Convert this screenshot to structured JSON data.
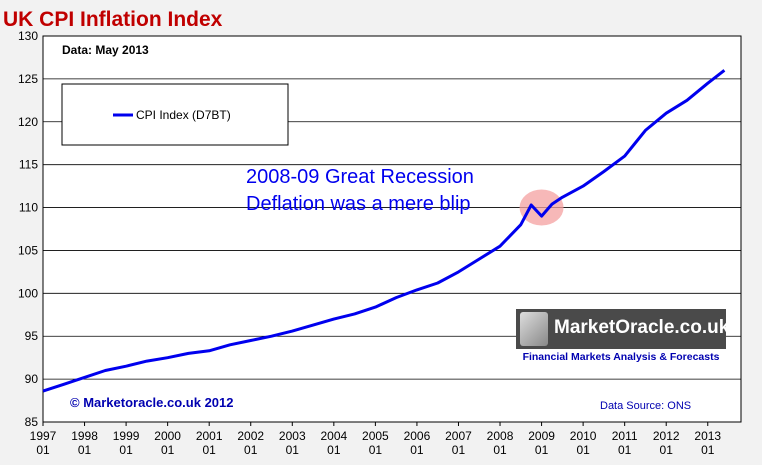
{
  "chart_data": {
    "type": "line",
    "title": "UK CPI Inflation Index",
    "subtitle": "Data: May 2013",
    "series": [
      {
        "name": "CPI Index (D7BT)",
        "color": "#0000ee",
        "points": [
          [
            1997.0,
            88.6
          ],
          [
            1997.5,
            89.4
          ],
          [
            1998.0,
            90.2
          ],
          [
            1998.5,
            91.0
          ],
          [
            1999.0,
            91.5
          ],
          [
            1999.5,
            92.1
          ],
          [
            2000.0,
            92.5
          ],
          [
            2000.5,
            93.0
          ],
          [
            2001.0,
            93.3
          ],
          [
            2001.5,
            94.0
          ],
          [
            2002.0,
            94.5
          ],
          [
            2002.5,
            95.0
          ],
          [
            2003.0,
            95.6
          ],
          [
            2003.5,
            96.3
          ],
          [
            2004.0,
            97.0
          ],
          [
            2004.5,
            97.6
          ],
          [
            2005.0,
            98.4
          ],
          [
            2005.5,
            99.5
          ],
          [
            2006.0,
            100.4
          ],
          [
            2006.5,
            101.2
          ],
          [
            2007.0,
            102.5
          ],
          [
            2007.5,
            104.0
          ],
          [
            2008.0,
            105.5
          ],
          [
            2008.5,
            108.0
          ],
          [
            2008.75,
            110.3
          ],
          [
            2009.0,
            109.0
          ],
          [
            2009.25,
            110.4
          ],
          [
            2009.5,
            111.2
          ],
          [
            2010.0,
            112.5
          ],
          [
            2010.5,
            114.2
          ],
          [
            2011.0,
            116.0
          ],
          [
            2011.5,
            119.0
          ],
          [
            2012.0,
            121.0
          ],
          [
            2012.5,
            122.5
          ],
          [
            2013.0,
            124.5
          ],
          [
            2013.4,
            126.0
          ]
        ]
      }
    ],
    "x_ticks": [
      {
        "value": 1997,
        "label": "1997",
        "sub": "01"
      },
      {
        "value": 1998,
        "label": "1998",
        "sub": "01"
      },
      {
        "value": 1999,
        "label": "1999",
        "sub": "01"
      },
      {
        "value": 2000,
        "label": "2000",
        "sub": "01"
      },
      {
        "value": 2001,
        "label": "2001",
        "sub": "01"
      },
      {
        "value": 2002,
        "label": "2002",
        "sub": "01"
      },
      {
        "value": 2003,
        "label": "2003",
        "sub": "01"
      },
      {
        "value": 2004,
        "label": "2004",
        "sub": "01"
      },
      {
        "value": 2005,
        "label": "2005",
        "sub": "01"
      },
      {
        "value": 2006,
        "label": "2006",
        "sub": "01"
      },
      {
        "value": 2007,
        "label": "2007",
        "sub": "01"
      },
      {
        "value": 2008,
        "label": "2008",
        "sub": "01"
      },
      {
        "value": 2009,
        "label": "2009",
        "sub": "01"
      },
      {
        "value": 2010,
        "label": "2010",
        "sub": "01"
      },
      {
        "value": 2011,
        "label": "2011",
        "sub": "01"
      },
      {
        "value": 2012,
        "label": "2012",
        "sub": "01"
      },
      {
        "value": 2013,
        "label": "2013",
        "sub": "01"
      }
    ],
    "y_ticks": [
      85,
      90,
      95,
      100,
      105,
      110,
      115,
      120,
      125,
      130
    ],
    "xlim": [
      1997.0,
      2013.8
    ],
    "ylim": [
      85,
      130
    ],
    "grid": true,
    "legend_position": "top-left",
    "annotations": {
      "main_line1": "2008-09 Great Recession",
      "main_line2": "Deflation was a mere blip",
      "highlight_x": 2009.0,
      "highlight_y": 110.0,
      "copyright": "© Marketoracle.co.uk 2012",
      "source": "Data Source: ONS"
    }
  },
  "logo": {
    "brand": "MarketOracle.co.uk",
    "tagline": "Financial Markets Analysis & Forecasts"
  },
  "colors": {
    "title": "#c00000",
    "series": "#0000ee",
    "highlight": "#f4a0a0",
    "annotation_text": "#0000ee"
  }
}
